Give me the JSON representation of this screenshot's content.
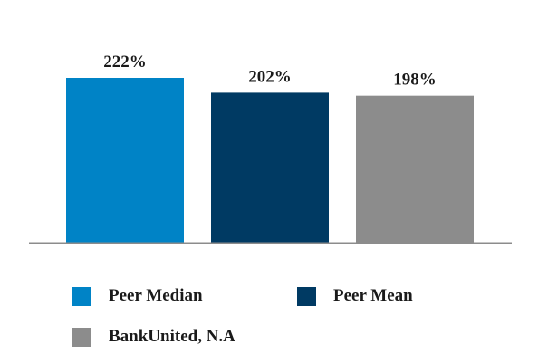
{
  "chart_data": {
    "type": "bar",
    "categories": [
      "Peer Median",
      "Peer Mean",
      "BankUnited, N.A"
    ],
    "values": [
      222,
      202,
      198
    ],
    "value_labels": [
      "222%",
      "202%",
      "198%"
    ],
    "colors": [
      "#0083C6",
      "#003A63",
      "#8C8C8C"
    ],
    "axis_color": "#8C8C8C",
    "ylim": [
      0,
      240
    ],
    "title": "",
    "xlabel": "",
    "ylabel": "",
    "grid": false,
    "legend_position": "bottom"
  },
  "legend": [
    {
      "label": "Peer Median",
      "color": "#0083C6"
    },
    {
      "label": "Peer Mean",
      "color": "#003A63"
    },
    {
      "label": "BankUnited, N.A",
      "color": "#8C8C8C"
    }
  ]
}
